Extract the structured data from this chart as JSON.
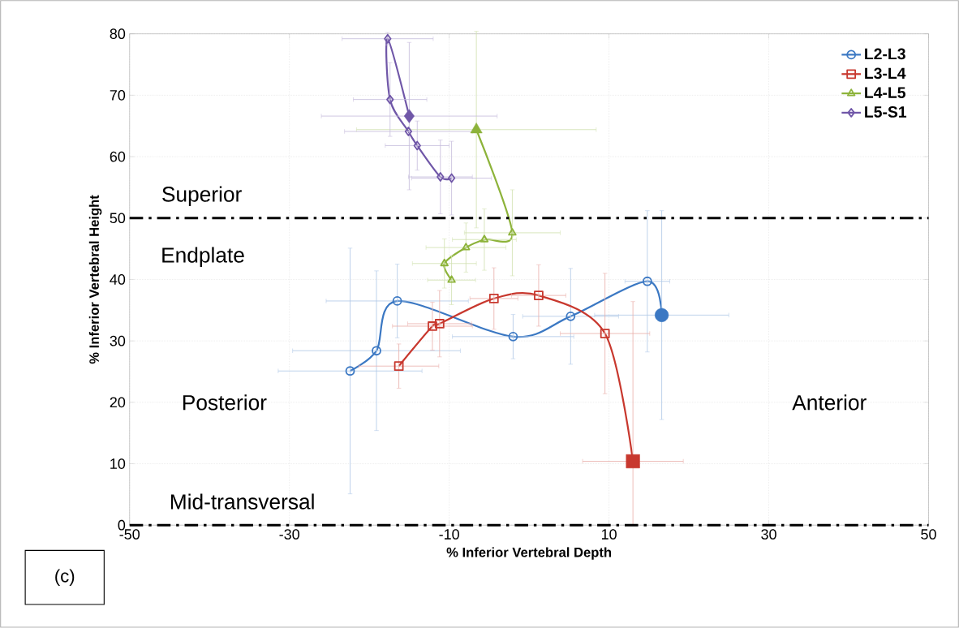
{
  "chart_data": {
    "type": "line",
    "xlabel": "% Inferior Vertebral Depth",
    "ylabel": "% Inferior Vertebral Height",
    "xlim": [
      -50,
      50
    ],
    "ylim": [
      0,
      80
    ],
    "xticks": [
      -50,
      -30,
      -10,
      10,
      30,
      50
    ],
    "yticks": [
      0,
      10,
      20,
      30,
      40,
      50,
      60,
      70,
      80
    ],
    "grid": true,
    "legend": "top right",
    "series": [
      {
        "name": "L2-L3",
        "color": "#3b78c3",
        "marker": "circle",
        "x": [
          -22.4,
          -19.1,
          -16.5,
          -2.0,
          5.2,
          14.8,
          16.6
        ],
        "values": [
          25.1,
          28.4,
          36.5,
          30.7,
          34.0,
          39.7,
          34.2
        ],
        "errors": [
          20,
          13,
          6,
          3.6,
          7.8,
          11.5,
          17
        ],
        "xerrors": [
          9,
          10.5,
          8.9,
          7.6,
          6,
          2.8,
          8.4
        ]
      },
      {
        "name": "L3-L4",
        "color": "#c8382e",
        "marker": "square",
        "x": [
          -16.3,
          -12.1,
          -11.2,
          -4.4,
          1.2,
          9.5,
          13.0
        ],
        "values": [
          25.9,
          32.4,
          32.8,
          36.9,
          37.4,
          31.2,
          10.4
        ],
        "errors": [
          3.6,
          3.9,
          5.4,
          5,
          5,
          9.8,
          [
            0,
            36.4
          ]
        ],
        "xerrors": [
          5,
          5,
          4,
          3,
          3.4,
          5.6,
          6.3
        ]
      },
      {
        "name": "L4-L5",
        "color": "#8db33a",
        "marker": "triangle",
        "x": [
          -9.7,
          -10.6,
          -7.9,
          -5.6,
          -2.1,
          -6.6
        ],
        "values": [
          39.9,
          42.6,
          45.2,
          46.5,
          47.6,
          64.4
        ],
        "errors": [
          4,
          4,
          4,
          5,
          7,
          16
        ],
        "xerrors": [
          3,
          4,
          5,
          4,
          6,
          15
        ]
      },
      {
        "name": "L5-S1",
        "color": "#7057a8",
        "marker": "diamond",
        "x": [
          -9.7,
          -11.1,
          -14.0,
          -15.1,
          -17.4,
          -17.7,
          -15.0
        ],
        "values": [
          56.5,
          56.7,
          61.8,
          64.1,
          69.3,
          79.2,
          66.6
        ],
        "errors": [
          6,
          6,
          4,
          null,
          6,
          1,
          12
        ],
        "xerrors": [
          5,
          4,
          4,
          8,
          4.6,
          5.7,
          11
        ]
      }
    ],
    "ref_lines": [
      {
        "axis": "y",
        "value": 50,
        "color": "#000000",
        "line_style": "dashdot"
      },
      {
        "axis": "y",
        "value": 0,
        "color": "#000000",
        "line_style": "dashdot"
      }
    ],
    "annotations": [
      "Superior",
      "Endplate",
      "Posterior",
      "Anterior",
      "Mid-transversal",
      "(c)"
    ]
  }
}
